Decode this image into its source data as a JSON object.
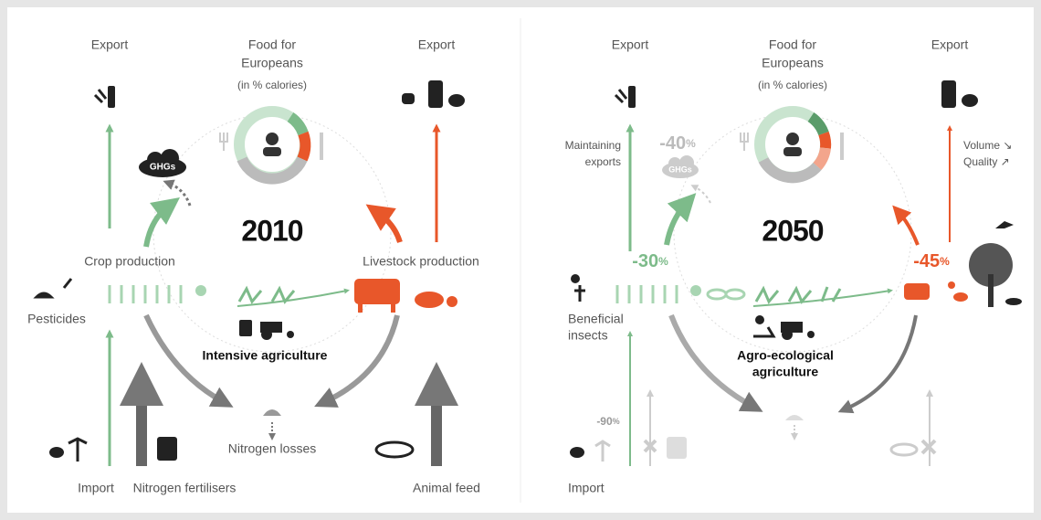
{
  "panels": [
    {
      "year": "2010",
      "export_left": "Export",
      "export_right": "Export",
      "food_title": [
        "Food for",
        "Europeans"
      ],
      "food_subtitle": "(in % calories)",
      "ghgs": "GHGs",
      "crop": "Crop production",
      "livestock": "Livestock production",
      "side_label": [
        "Pesticides"
      ],
      "agriculture": [
        "Intensive agriculture"
      ],
      "nitrogen": "Nitrogen losses",
      "import": "Import",
      "fertilisers": "Nitrogen fertilisers",
      "feed": "Animal feed"
    },
    {
      "year": "2050",
      "export_left": "Export",
      "export_right": "Export",
      "food_title": [
        "Food for",
        "Europeans"
      ],
      "food_subtitle": "(in % calories)",
      "ghgs": "GHGs",
      "export_note": [
        "Maintaining",
        "exports"
      ],
      "livestock_note": [
        "Volume ↘",
        "Quality ↗"
      ],
      "ghg_change": {
        "number": "-40",
        "unit": "%"
      },
      "crop_change": {
        "number": "-30",
        "unit": "%"
      },
      "livestock_change": {
        "number": "-45",
        "unit": "%"
      },
      "import_change": {
        "number": "-90",
        "unit": "%"
      },
      "side_label": [
        "Beneficial",
        "insects"
      ],
      "agriculture": [
        "Agro-ecological",
        "agriculture"
      ],
      "import": "Import"
    }
  ]
}
